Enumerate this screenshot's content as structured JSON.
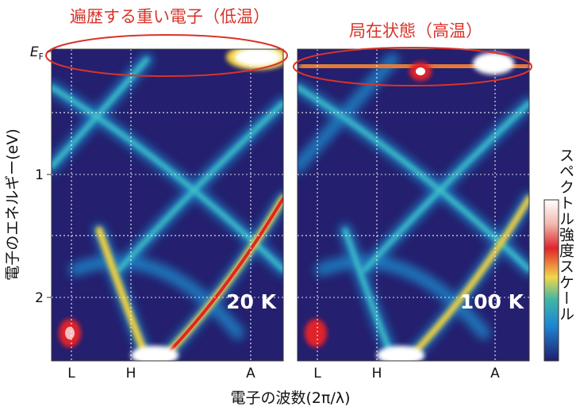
{
  "annotations": {
    "low_temp": "遍歴する重い電子（低温）",
    "high_temp": "局在状態（高温）"
  },
  "y_axis": {
    "label": "電子のエネルギー(eV)",
    "ticks": [
      {
        "value": 0,
        "label": "E",
        "subscript": "F"
      },
      1,
      2
    ]
  },
  "x_axis": {
    "label": "電子の波数(2π/λ)",
    "ticks": [
      "L",
      "H",
      "A"
    ]
  },
  "panels": [
    {
      "label": "20 K"
    },
    {
      "label": "100 K"
    }
  ],
  "colorbar": {
    "label": "スペクトル強度スケール"
  }
}
